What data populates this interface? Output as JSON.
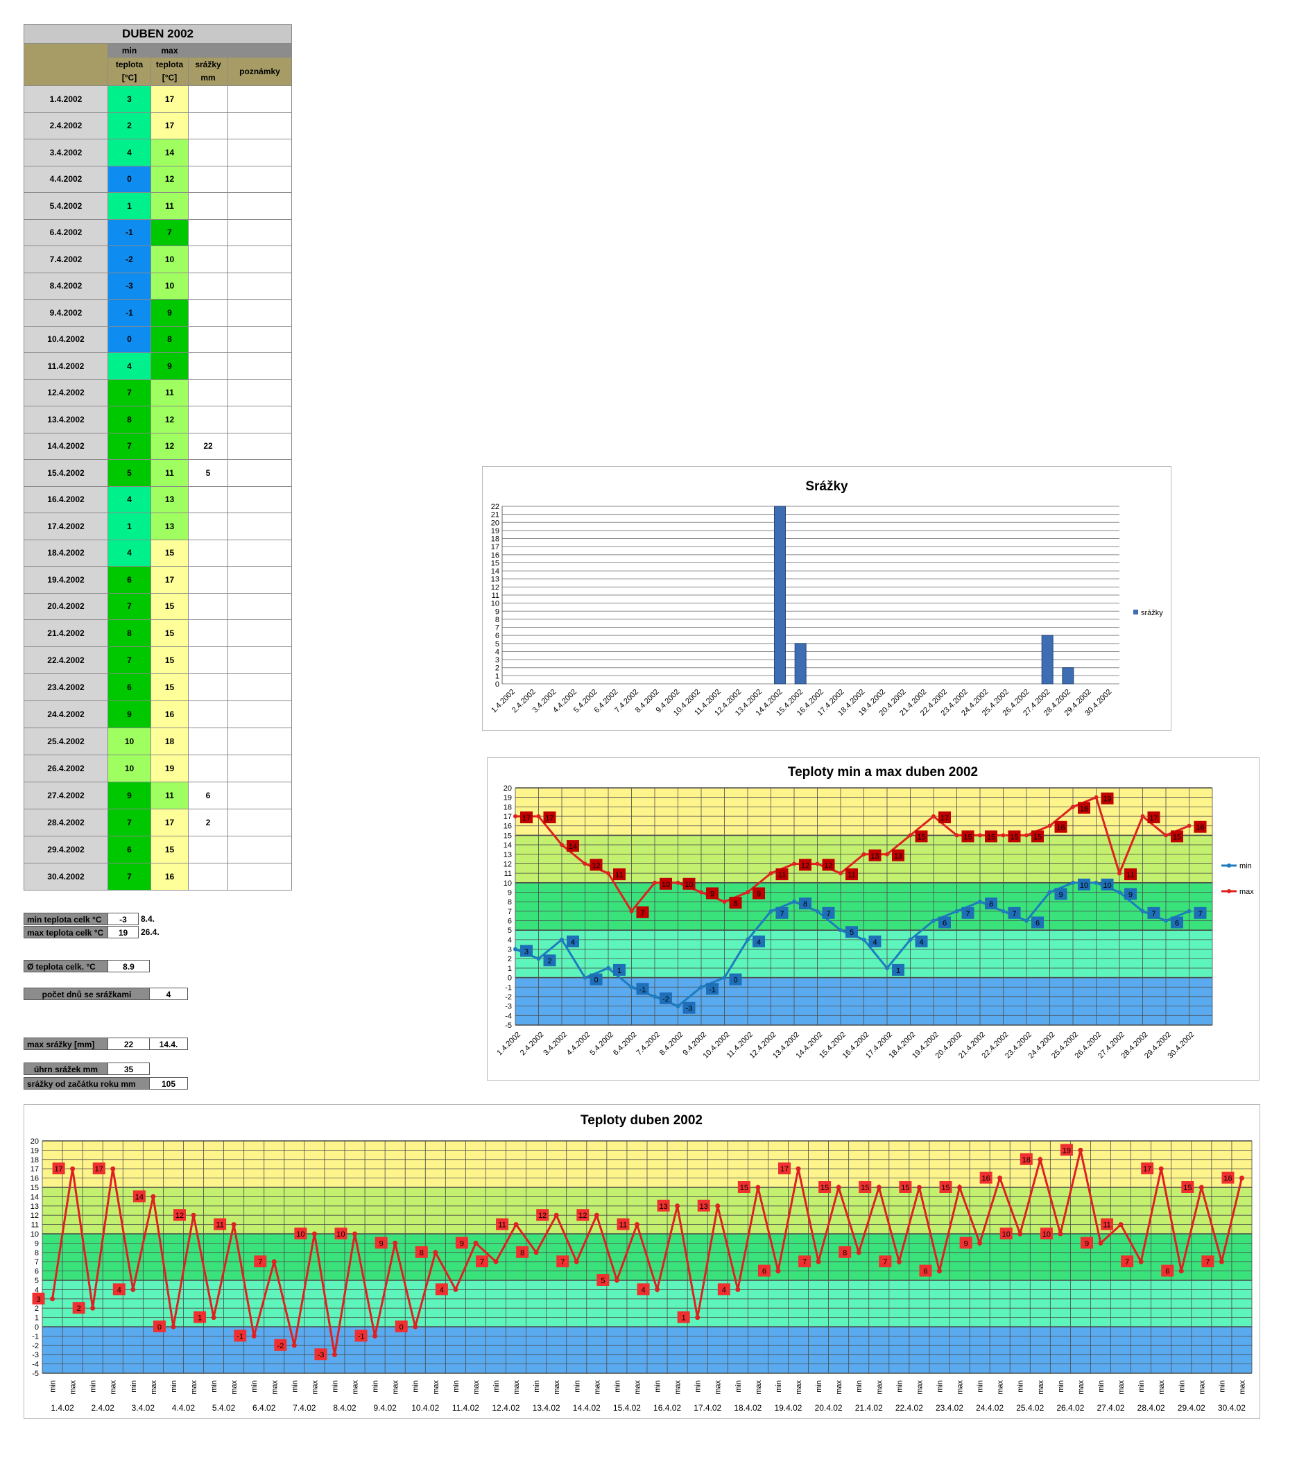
{
  "table": {
    "title": "DUBEN 2002",
    "header": {
      "min_top": "min",
      "max_top": "max",
      "min_label": "teplota [°C]",
      "max_label": "teplota [°C]",
      "rain_label": "srážky mm",
      "notes_label": "poznámky"
    },
    "rows": [
      {
        "date": "1.4.2002",
        "min": "3",
        "max": "17",
        "rain": "",
        "note": ""
      },
      {
        "date": "2.4.2002",
        "min": "2",
        "max": "17",
        "rain": "",
        "note": ""
      },
      {
        "date": "3.4.2002",
        "min": "4",
        "max": "14",
        "rain": "",
        "note": ""
      },
      {
        "date": "4.4.2002",
        "min": "0",
        "max": "12",
        "rain": "",
        "note": ""
      },
      {
        "date": "5.4.2002",
        "min": "1",
        "max": "11",
        "rain": "",
        "note": ""
      },
      {
        "date": "6.4.2002",
        "min": "-1",
        "max": "7",
        "rain": "",
        "note": ""
      },
      {
        "date": "7.4.2002",
        "min": "-2",
        "max": "10",
        "rain": "",
        "note": ""
      },
      {
        "date": "8.4.2002",
        "min": "-3",
        "max": "10",
        "rain": "",
        "note": ""
      },
      {
        "date": "9.4.2002",
        "min": "-1",
        "max": "9",
        "rain": "",
        "note": ""
      },
      {
        "date": "10.4.2002",
        "min": "0",
        "max": "8",
        "rain": "",
        "note": ""
      },
      {
        "date": "11.4.2002",
        "min": "4",
        "max": "9",
        "rain": "",
        "note": ""
      },
      {
        "date": "12.4.2002",
        "min": "7",
        "max": "11",
        "rain": "",
        "note": ""
      },
      {
        "date": "13.4.2002",
        "min": "8",
        "max": "12",
        "rain": "",
        "note": ""
      },
      {
        "date": "14.4.2002",
        "min": "7",
        "max": "12",
        "rain": "22",
        "note": ""
      },
      {
        "date": "15.4.2002",
        "min": "5",
        "max": "11",
        "rain": "5",
        "note": ""
      },
      {
        "date": "16.4.2002",
        "min": "4",
        "max": "13",
        "rain": "",
        "note": ""
      },
      {
        "date": "17.4.2002",
        "min": "1",
        "max": "13",
        "rain": "",
        "note": ""
      },
      {
        "date": "18.4.2002",
        "min": "4",
        "max": "15",
        "rain": "",
        "note": ""
      },
      {
        "date": "19.4.2002",
        "min": "6",
        "max": "17",
        "rain": "",
        "note": ""
      },
      {
        "date": "20.4.2002",
        "min": "7",
        "max": "15",
        "rain": "",
        "note": ""
      },
      {
        "date": "21.4.2002",
        "min": "8",
        "max": "15",
        "rain": "",
        "note": ""
      },
      {
        "date": "22.4.2002",
        "min": "7",
        "max": "15",
        "rain": "",
        "note": ""
      },
      {
        "date": "23.4.2002",
        "min": "6",
        "max": "15",
        "rain": "",
        "note": ""
      },
      {
        "date": "24.4.2002",
        "min": "9",
        "max": "16",
        "rain": "",
        "note": ""
      },
      {
        "date": "25.4.2002",
        "min": "10",
        "max": "18",
        "rain": "",
        "note": ""
      },
      {
        "date": "26.4.2002",
        "min": "10",
        "max": "19",
        "rain": "",
        "note": ""
      },
      {
        "date": "27.4.2002",
        "min": "9",
        "max": "11",
        "rain": "6",
        "note": ""
      },
      {
        "date": "28.4.2002",
        "min": "7",
        "max": "17",
        "rain": "2",
        "note": ""
      },
      {
        "date": "29.4.2002",
        "min": "6",
        "max": "15",
        "rain": "",
        "note": ""
      },
      {
        "date": "30.4.2002",
        "min": "7",
        "max": "16",
        "rain": "",
        "note": ""
      }
    ]
  },
  "summary": {
    "min_label": "min teplota celk °C",
    "min_value": "-3",
    "min_date": "8.4.",
    "max_label": "max teplota celk °C",
    "max_value": "19",
    "max_date": "26.4.",
    "avg_label": "Ø teplota celk. °C",
    "avg_value": "8.9",
    "raindays_label": "počet dnů se srážkami",
    "raindays_value": "4",
    "maxrain_label": "max srážky [mm]",
    "maxrain_value": "22",
    "maxrain_date": "14.4.",
    "totalrain_label": "úhrn srážek  mm",
    "totalrain_value": "35",
    "yearrain_label": "srážky od začátku roku mm",
    "yearrain_value": "105"
  },
  "colors": {
    "zone_yellow": "#fdf58c",
    "zone_lightgreen": "#c3f06e",
    "zone_green": "#3ae27c",
    "zone_aqua": "#5ef5bc",
    "zone_blue": "#5aaaf0",
    "min_line": "#1e7bbf",
    "max_line": "#e02020",
    "max_label_bg": "#c00000",
    "bar": "#3e6db3"
  },
  "chart_data": [
    {
      "type": "bar",
      "title": "Srážky",
      "categories": [
        "1.4.2002",
        "2.4.2002",
        "3.4.2002",
        "4.4.2002",
        "5.4.2002",
        "6.4.2002",
        "7.4.2002",
        "8.4.2002",
        "9.4.2002",
        "10.4.2002",
        "11.4.2002",
        "12.4.2002",
        "13.4.2002",
        "14.4.2002",
        "15.4.2002",
        "16.4.2002",
        "17.4.2002",
        "18.4.2002",
        "19.4.2002",
        "20.4.2002",
        "21.4.2002",
        "22.4.2002",
        "23.4.2002",
        "24.4.2002",
        "25.4.2002",
        "26.4.2002",
        "27.4.2002",
        "28.4.2002",
        "29.4.2002",
        "30.4.2002"
      ],
      "series": [
        {
          "name": "srážky",
          "values": [
            0,
            0,
            0,
            0,
            0,
            0,
            0,
            0,
            0,
            0,
            0,
            0,
            0,
            22,
            5,
            0,
            0,
            0,
            0,
            0,
            0,
            0,
            0,
            0,
            0,
            0,
            6,
            2,
            0,
            0
          ]
        }
      ],
      "ylim": [
        0,
        22
      ],
      "legend": "right",
      "grid": true
    },
    {
      "type": "line",
      "title": "Teploty min a max duben 2002",
      "categories": [
        "1.4.2002",
        "2.4.2002",
        "3.4.2002",
        "4.4.2002",
        "5.4.2002",
        "6.4.2002",
        "7.4.2002",
        "8.4.2002",
        "9.4.2002",
        "10.4.2002",
        "11.4.2002",
        "12.4.2002",
        "13.4.2002",
        "14.4.2002",
        "15.4.2002",
        "16.4.2002",
        "17.4.2002",
        "18.4.2002",
        "19.4.2002",
        "20.4.2002",
        "21.4.2002",
        "22.4.2002",
        "23.4.2002",
        "24.4.2002",
        "25.4.2002",
        "26.4.2002",
        "27.4.2002",
        "28.4.2002",
        "29.4.2002",
        "30.4.2002"
      ],
      "series": [
        {
          "name": "min",
          "values": [
            3,
            2,
            4,
            0,
            1,
            -1,
            -2,
            -3,
            -1,
            0,
            4,
            7,
            8,
            7,
            5,
            4,
            1,
            4,
            6,
            7,
            8,
            7,
            6,
            9,
            10,
            10,
            9,
            7,
            6,
            7
          ]
        },
        {
          "name": "max",
          "values": [
            17,
            17,
            14,
            12,
            11,
            7,
            10,
            10,
            9,
            8,
            9,
            11,
            12,
            12,
            11,
            13,
            13,
            15,
            17,
            15,
            15,
            15,
            15,
            16,
            18,
            19,
            11,
            17,
            15,
            16
          ]
        }
      ],
      "ylim": [
        -5,
        20
      ],
      "legend": "right",
      "grid": true
    },
    {
      "type": "line",
      "title": "Teploty duben 2002",
      "date_labels": [
        "1.4.02",
        "2.4.02",
        "3.4.02",
        "4.4.02",
        "5.4.02",
        "6.4.02",
        "7.4.02",
        "8.4.02",
        "9.4.02",
        "10.4.02",
        "11.4.02",
        "12.4.02",
        "13.4.02",
        "14.4.02",
        "15.4.02",
        "16.4.02",
        "17.4.02",
        "18.4.02",
        "19.4.02",
        "20.4.02",
        "21.4.02",
        "22.4.02",
        "23.4.02",
        "24.4.02",
        "25.4.02",
        "26.4.02",
        "27.4.02",
        "28.4.02",
        "29.4.02",
        "30.4.02"
      ],
      "sub_labels": [
        "min",
        "max"
      ],
      "series": [
        {
          "name": "",
          "values": [
            3,
            17,
            2,
            17,
            4,
            14,
            0,
            12,
            1,
            11,
            -1,
            7,
            -2,
            10,
            -3,
            10,
            -1,
            9,
            0,
            8,
            4,
            9,
            7,
            11,
            8,
            12,
            7,
            12,
            5,
            11,
            4,
            13,
            1,
            13,
            4,
            15,
            6,
            17,
            7,
            15,
            8,
            15,
            7,
            15,
            6,
            15,
            9,
            16,
            10,
            18,
            10,
            19,
            9,
            11,
            7,
            17,
            6,
            15,
            7,
            16
          ]
        }
      ],
      "ylim": [
        -5,
        20
      ],
      "legend": "none",
      "grid": true
    }
  ]
}
